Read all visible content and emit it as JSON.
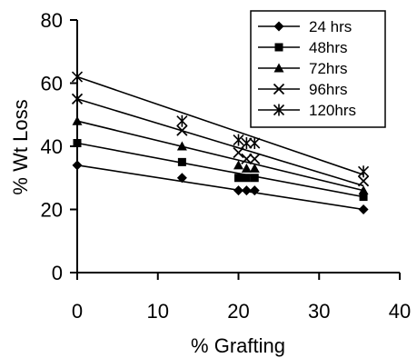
{
  "chart_data": {
    "type": "scatter",
    "title": "",
    "xlabel": "% Grafting",
    "ylabel": "% Wt Loss",
    "xlim": [
      0,
      40
    ],
    "ylim": [
      0,
      80
    ],
    "xticks": [
      0,
      10,
      20,
      30,
      40
    ],
    "yticks": [
      0,
      20,
      40,
      60,
      80
    ],
    "grid": false,
    "legend_position": "top-right",
    "trendlines": true,
    "series": [
      {
        "name": "24 hrs",
        "marker": "diamond",
        "points": [
          [
            0,
            34
          ],
          [
            13,
            30
          ],
          [
            20,
            26
          ],
          [
            21,
            26
          ],
          [
            22,
            26
          ],
          [
            35.5,
            20
          ]
        ],
        "fit": [
          [
            0,
            34
          ],
          [
            35.5,
            20
          ]
        ]
      },
      {
        "name": "48hrs",
        "marker": "square",
        "points": [
          [
            0,
            41
          ],
          [
            13,
            35
          ],
          [
            20,
            30
          ],
          [
            21,
            30
          ],
          [
            22,
            30
          ],
          [
            35.5,
            24
          ]
        ],
        "fit": [
          [
            0,
            41
          ],
          [
            35.5,
            24
          ]
        ]
      },
      {
        "name": "72hrs",
        "marker": "triangle",
        "points": [
          [
            0,
            48
          ],
          [
            13,
            40
          ],
          [
            20,
            34
          ],
          [
            21,
            33
          ],
          [
            22,
            33
          ],
          [
            35.5,
            26
          ]
        ],
        "fit": [
          [
            0,
            48
          ],
          [
            35.5,
            26
          ]
        ]
      },
      {
        "name": "96hrs",
        "marker": "x",
        "points": [
          [
            0,
            55
          ],
          [
            13,
            45
          ],
          [
            20,
            38
          ],
          [
            21,
            36
          ],
          [
            22,
            36
          ],
          [
            35.5,
            29
          ]
        ],
        "fit": [
          [
            0,
            55
          ],
          [
            35.5,
            27.5
          ]
        ]
      },
      {
        "name": "120hrs",
        "marker": "star",
        "points": [
          [
            0,
            62
          ],
          [
            13,
            48
          ],
          [
            20,
            42
          ],
          [
            21,
            41
          ],
          [
            22,
            41
          ],
          [
            35.5,
            32
          ]
        ],
        "fit": [
          [
            0,
            62
          ],
          [
            35.5,
            31
          ]
        ]
      }
    ]
  }
}
